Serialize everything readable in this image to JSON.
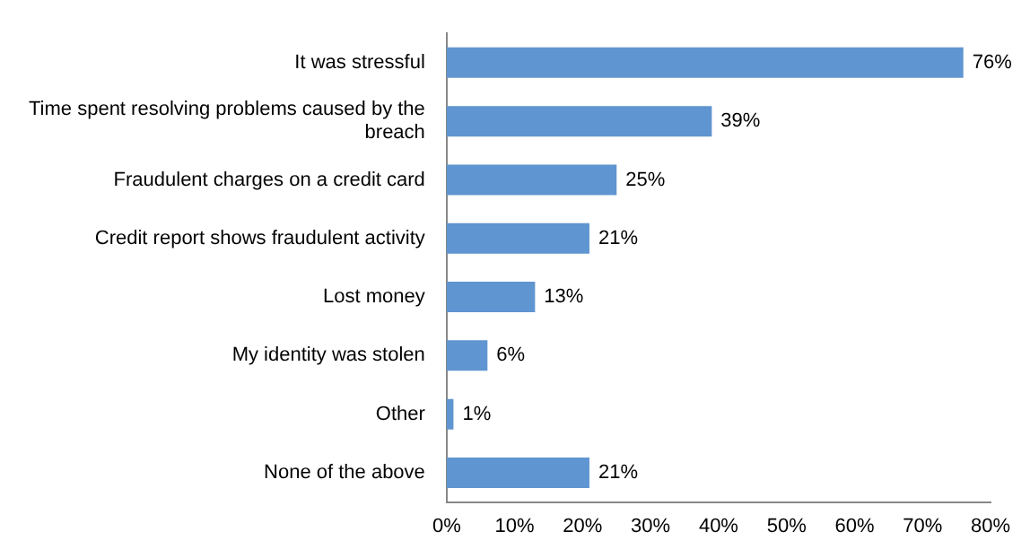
{
  "chart_data": {
    "type": "bar",
    "orientation": "horizontal",
    "categories": [
      "It was stressful",
      "Time spent resolving problems caused by the breach",
      "Fraudulent charges on a credit card",
      "Credit report shows fraudulent activity",
      "Lost money",
      "My identity was stolen",
      "Other",
      "None of the above"
    ],
    "values": [
      76,
      39,
      25,
      21,
      13,
      6,
      1,
      21
    ],
    "value_labels": [
      "76%",
      "39%",
      "25%",
      "21%",
      "13%",
      "6%",
      "1%",
      "21%"
    ],
    "color": "#5f95d0",
    "xlim": [
      0,
      80
    ],
    "xticks": [
      {
        "value": 0,
        "label": "0%"
      },
      {
        "value": 10,
        "label": "10%"
      },
      {
        "value": 20,
        "label": "20%"
      },
      {
        "value": 30,
        "label": "30%"
      },
      {
        "value": 40,
        "label": "40%"
      },
      {
        "value": 50,
        "label": "50%"
      },
      {
        "value": 60,
        "label": "60%"
      },
      {
        "value": 70,
        "label": "70%"
      },
      {
        "value": 80,
        "label": "80%"
      }
    ],
    "grid": false
  }
}
